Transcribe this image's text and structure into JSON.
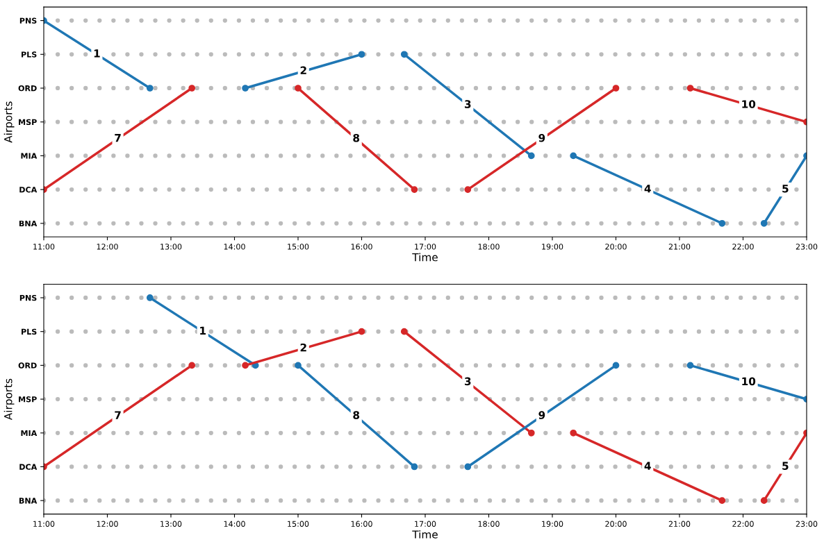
{
  "chart_data": [
    {
      "type": "line",
      "orientation": "horizontal",
      "xlabel": "Time",
      "ylabel": "Airports",
      "xlim": [
        11,
        23
      ],
      "xticks": [
        {
          "value": 11,
          "label": "11:00"
        },
        {
          "value": 12,
          "label": "12:00"
        },
        {
          "value": 13,
          "label": "13:00"
        },
        {
          "value": 14,
          "label": "14:00"
        },
        {
          "value": 15,
          "label": "15:00"
        },
        {
          "value": 16,
          "label": "16:00"
        },
        {
          "value": 17,
          "label": "17:00"
        },
        {
          "value": 18,
          "label": "18:00"
        },
        {
          "value": 19,
          "label": "19:00"
        },
        {
          "value": 20,
          "label": "20:00"
        },
        {
          "value": 21,
          "label": "21:00"
        },
        {
          "value": 22,
          "label": "22:00"
        },
        {
          "value": 23,
          "label": "23:00"
        }
      ],
      "categories": [
        "PNS",
        "PLS",
        "ORD",
        "MSP",
        "MIA",
        "DCA",
        "BNA"
      ],
      "grid": "y",
      "marker": "circle",
      "line_style": "solid",
      "series": [
        {
          "name": "1",
          "color": "#1f77b4",
          "values": [
            11.0,
            null,
            12.67,
            null,
            null,
            null,
            null
          ]
        },
        {
          "name": "2",
          "color": "#1f77b4",
          "values": [
            null,
            16.0,
            14.17,
            null,
            null,
            null,
            null
          ]
        },
        {
          "name": "3",
          "color": "#1f77b4",
          "values": [
            null,
            16.67,
            null,
            null,
            18.67,
            null,
            null
          ]
        },
        {
          "name": "4",
          "color": "#1f77b4",
          "values": [
            null,
            null,
            null,
            null,
            19.33,
            null,
            21.67
          ]
        },
        {
          "name": "5",
          "color": "#1f77b4",
          "values": [
            null,
            null,
            null,
            null,
            23.0,
            null,
            22.33
          ]
        },
        {
          "name": "7",
          "color": "#d62728",
          "values": [
            null,
            null,
            13.33,
            null,
            null,
            11.0,
            null
          ]
        },
        {
          "name": "8",
          "color": "#d62728",
          "values": [
            null,
            null,
            15.0,
            null,
            null,
            16.83,
            null
          ]
        },
        {
          "name": "9",
          "color": "#d62728",
          "values": [
            null,
            null,
            20.0,
            null,
            null,
            17.67,
            null
          ]
        },
        {
          "name": "10",
          "color": "#d62728",
          "values": [
            null,
            null,
            21.17,
            23.0,
            null,
            null,
            null
          ]
        }
      ]
    },
    {
      "type": "line",
      "orientation": "horizontal",
      "xlabel": "Time",
      "ylabel": "Airports",
      "xlim": [
        11,
        23
      ],
      "xticks": [
        {
          "value": 11,
          "label": "11:00"
        },
        {
          "value": 12,
          "label": "12:00"
        },
        {
          "value": 13,
          "label": "13:00"
        },
        {
          "value": 14,
          "label": "14:00"
        },
        {
          "value": 15,
          "label": "15:00"
        },
        {
          "value": 16,
          "label": "16:00"
        },
        {
          "value": 17,
          "label": "17:00"
        },
        {
          "value": 18,
          "label": "18:00"
        },
        {
          "value": 19,
          "label": "19:00"
        },
        {
          "value": 20,
          "label": "20:00"
        },
        {
          "value": 21,
          "label": "21:00"
        },
        {
          "value": 22,
          "label": "22:00"
        },
        {
          "value": 23,
          "label": "23:00"
        }
      ],
      "categories": [
        "PNS",
        "PLS",
        "ORD",
        "MSP",
        "MIA",
        "DCA",
        "BNA"
      ],
      "grid": "y",
      "marker": "circle",
      "line_style": "solid",
      "series": [
        {
          "name": "1",
          "color": "#1f77b4",
          "values": [
            12.67,
            null,
            14.33,
            null,
            null,
            null,
            null
          ]
        },
        {
          "name": "2",
          "color": "#d62728",
          "values": [
            null,
            16.0,
            14.17,
            null,
            null,
            null,
            null
          ]
        },
        {
          "name": "3",
          "color": "#d62728",
          "values": [
            null,
            16.67,
            null,
            null,
            18.67,
            null,
            null
          ]
        },
        {
          "name": "4",
          "color": "#d62728",
          "values": [
            null,
            null,
            null,
            null,
            19.33,
            null,
            21.67
          ]
        },
        {
          "name": "5",
          "color": "#d62728",
          "values": [
            null,
            null,
            null,
            null,
            23.0,
            null,
            22.33
          ]
        },
        {
          "name": "7",
          "color": "#d62728",
          "values": [
            null,
            null,
            13.33,
            null,
            null,
            11.0,
            null
          ]
        },
        {
          "name": "8",
          "color": "#1f77b4",
          "values": [
            null,
            null,
            15.0,
            null,
            null,
            16.83,
            null
          ]
        },
        {
          "name": "9",
          "color": "#1f77b4",
          "values": [
            null,
            null,
            20.0,
            null,
            null,
            17.67,
            null
          ]
        },
        {
          "name": "10",
          "color": "#1f77b4",
          "values": [
            null,
            null,
            21.17,
            23.0,
            null,
            null,
            null
          ]
        }
      ]
    }
  ]
}
